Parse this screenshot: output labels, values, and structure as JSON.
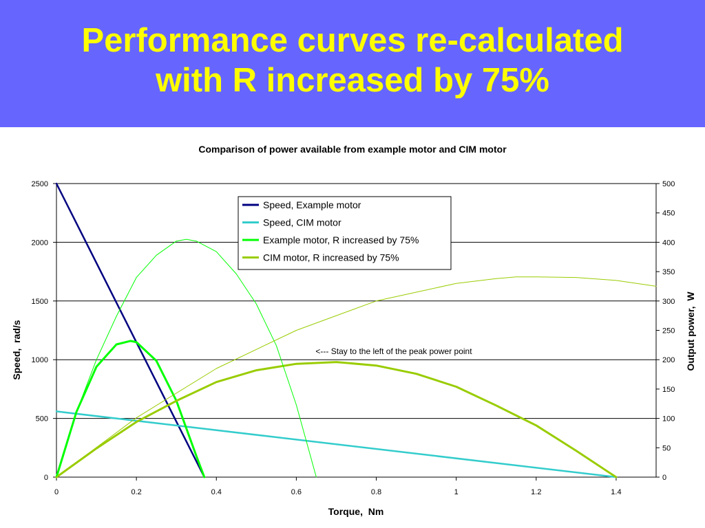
{
  "slide": {
    "title_line1": "Performance curves re-calculated",
    "title_line2": "with R increased by 75%",
    "colors": {
      "banner": "#6666ff",
      "title": "#ffff00"
    }
  },
  "chart_data": {
    "type": "line",
    "title": "Comparison of power available from example motor and CIM motor",
    "xlabel": "Torque,  Nm",
    "ylabel": "Speed,  rad/s",
    "y2label": "Output power,  W",
    "xlim": [
      0,
      1.5
    ],
    "ylim": [
      0,
      2500
    ],
    "y2lim": [
      0,
      500
    ],
    "x_ticks": [
      "0",
      "0.2",
      "0.4",
      "0.6",
      "0.8",
      "1",
      "1.2",
      "1.4"
    ],
    "y_ticks": [
      "0",
      "500",
      "1000",
      "1500",
      "2000",
      "2500"
    ],
    "y2_ticks": [
      "0",
      "50",
      "100",
      "150",
      "200",
      "250",
      "300",
      "350",
      "400",
      "450",
      "500"
    ],
    "grid": "horizontal",
    "legend_position": "top-center",
    "annotation": "<--- Stay to the left of the peak power point",
    "series": [
      {
        "name": "Speed, Example motor",
        "axis": "left",
        "color": "#000080",
        "x": [
          0,
          0.37
        ],
        "y": [
          2500,
          0
        ]
      },
      {
        "name": "Speed, CIM motor",
        "axis": "left",
        "color": "#33cccc",
        "x": [
          0,
          1.4
        ],
        "y": [
          560,
          0
        ]
      },
      {
        "name": "Example motor, R increased by 75%",
        "axis": "right",
        "color": "#00ff00",
        "x": [
          0,
          0.05,
          0.1,
          0.15,
          0.185,
          0.2,
          0.25,
          0.3,
          0.35,
          0.37
        ],
        "y": [
          0,
          111,
          188,
          226,
          232,
          230,
          198,
          130,
          36,
          0
        ]
      },
      {
        "name": "CIM motor, R increased by 75%",
        "axis": "right",
        "color": "#99cc00",
        "x": [
          0,
          0.1,
          0.2,
          0.3,
          0.4,
          0.5,
          0.6,
          0.7,
          0.8,
          0.9,
          1.0,
          1.1,
          1.2,
          1.3,
          1.4
        ],
        "y": [
          0,
          49,
          94,
          130,
          162,
          182,
          193,
          196,
          190,
          176,
          154,
          122,
          88,
          45,
          0
        ]
      },
      {
        "name": "",
        "axis": "right",
        "color": "#00ff00",
        "x": [
          0,
          0.05,
          0.1,
          0.15,
          0.2,
          0.25,
          0.3,
          0.325,
          0.35,
          0.4,
          0.45,
          0.5,
          0.55,
          0.6,
          0.65
        ],
        "y": [
          0,
          111,
          200,
          274,
          340,
          378,
          402,
          405,
          402,
          384,
          346,
          295,
          224,
          123,
          0
        ]
      },
      {
        "name": "",
        "axis": "right",
        "color": "#99cc00",
        "x": [
          0,
          0.2,
          0.4,
          0.6,
          0.8,
          0.9,
          1.0,
          1.1,
          1.15,
          1.2,
          1.3,
          1.4,
          1.5
        ],
        "y": [
          0,
          101,
          185,
          250,
          300,
          315,
          330,
          338,
          341,
          341,
          340,
          335,
          325
        ]
      }
    ]
  }
}
